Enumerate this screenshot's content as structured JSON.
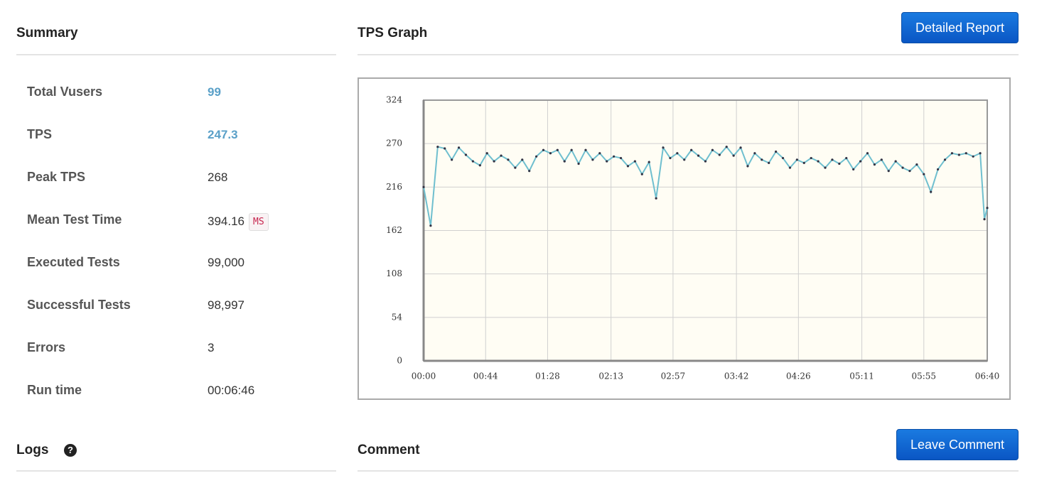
{
  "summary": {
    "title": "Summary",
    "rows": [
      {
        "label": "Total Vusers",
        "value": "99"
      },
      {
        "label": "TPS",
        "value": "247.3"
      },
      {
        "label": "Peak TPS",
        "value": "268"
      },
      {
        "label": "Mean Test Time",
        "value": "394.16",
        "unit": "MS"
      },
      {
        "label": "Executed Tests",
        "value": "99,000"
      },
      {
        "label": "Successful Tests",
        "value": "98,997"
      },
      {
        "label": "Errors",
        "value": "3"
      },
      {
        "label": "Run time",
        "value": "00:06:46"
      }
    ]
  },
  "graph_panel": {
    "title": "TPS Graph",
    "button": "Detailed Report"
  },
  "logs": {
    "title": "Logs"
  },
  "comment": {
    "title": "Comment",
    "button": "Leave Comment"
  },
  "chart_data": {
    "type": "line",
    "x": [
      0,
      5,
      10,
      15,
      20,
      25,
      30,
      35,
      40,
      45,
      50,
      55,
      60,
      65,
      70,
      75,
      80,
      85,
      90,
      95,
      100,
      105,
      110,
      115,
      120,
      125,
      130,
      135,
      140,
      145,
      150,
      155,
      160,
      165,
      170,
      175,
      180,
      185,
      190,
      195,
      200,
      205,
      210,
      215,
      220,
      225,
      230,
      235,
      240,
      245,
      250,
      255,
      260,
      265,
      270,
      275,
      280,
      285,
      290,
      295,
      300,
      305,
      310,
      315,
      320,
      325,
      330,
      335,
      340,
      345,
      350,
      355,
      360,
      365,
      370,
      375,
      380,
      385,
      390,
      395,
      398,
      400
    ],
    "series": [
      {
        "name": "TPS",
        "color": "#6fbfcf",
        "values": [
          216,
          168,
          266,
          264,
          250,
          265,
          256,
          248,
          243,
          258,
          248,
          255,
          250,
          240,
          250,
          236,
          254,
          262,
          258,
          262,
          248,
          262,
          245,
          262,
          250,
          258,
          248,
          254,
          252,
          242,
          248,
          232,
          247,
          202,
          265,
          252,
          258,
          250,
          262,
          255,
          248,
          262,
          256,
          266,
          255,
          265,
          242,
          258,
          250,
          246,
          260,
          252,
          240,
          250,
          246,
          252,
          248,
          240,
          250,
          245,
          252,
          238,
          248,
          258,
          244,
          250,
          236,
          248,
          240,
          236,
          244,
          232,
          210,
          238,
          250,
          258,
          256,
          258,
          254,
          258,
          176,
          190
        ]
      }
    ],
    "xlim": [
      0,
      400
    ],
    "xticks": [
      {
        "value": 0,
        "label": "00:00"
      },
      {
        "value": 44,
        "label": "00:44"
      },
      {
        "value": 88,
        "label": "01:28"
      },
      {
        "value": 133,
        "label": "02:13"
      },
      {
        "value": 177,
        "label": "02:57"
      },
      {
        "value": 222,
        "label": "03:42"
      },
      {
        "value": 266,
        "label": "04:26"
      },
      {
        "value": 311,
        "label": "05:11"
      },
      {
        "value": 355,
        "label": "05:55"
      },
      {
        "value": 400,
        "label": "06:40"
      }
    ],
    "ylim": [
      0,
      324
    ],
    "yticks": [
      0,
      54,
      108,
      162,
      216,
      270,
      324
    ],
    "grid": true
  }
}
